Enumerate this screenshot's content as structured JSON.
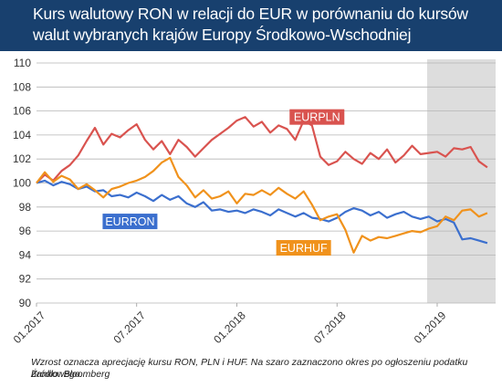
{
  "header": {
    "title": "Kurs walutowy RON w relacji do EUR w porównaniu do kursów walut wybranych krajów Europy Środkowo-Wschodniej"
  },
  "footer": {
    "note": "Wzrost oznacza aprecjację kursu RON, PLN i HUF. Na szaro zaznaczono okres po ogłoszeniu podatku bankowego.",
    "source": "Źródło: Bloomberg"
  },
  "colors": {
    "header_bg": "#18406e",
    "EURPLN": "#d9534f",
    "EURRON": "#3b6fce",
    "EURHUF": "#f0921c",
    "shade": "#d9d9d9"
  },
  "chart_data": {
    "type": "line",
    "ylim": [
      90,
      110
    ],
    "yticks": [
      90,
      92,
      94,
      96,
      98,
      100,
      102,
      104,
      106,
      108,
      110
    ],
    "x_range": [
      0,
      27.5
    ],
    "x_ticks": [
      {
        "x": 0,
        "label": "01.2017"
      },
      {
        "x": 6,
        "label": "07.2017"
      },
      {
        "x": 12,
        "label": "01.2018"
      },
      {
        "x": 18,
        "label": "07.2018"
      },
      {
        "x": 24,
        "label": "01.2019"
      }
    ],
    "shaded_region": {
      "from": 23.4,
      "to": 27.5
    },
    "series": [
      {
        "name": "EURPLN",
        "label_x": 16.8,
        "label_y": 105.5,
        "x": [
          0,
          0.5,
          1,
          1.5,
          2,
          2.5,
          3,
          3.5,
          4,
          4.5,
          5,
          5.5,
          6,
          6.5,
          7,
          7.5,
          8,
          8.5,
          9,
          9.5,
          10,
          10.5,
          11,
          11.5,
          12,
          12.5,
          13,
          13.5,
          14,
          14.5,
          15,
          15.5,
          16,
          16.5,
          17,
          17.5,
          18,
          18.5,
          19,
          19.5,
          20,
          20.5,
          21,
          21.5,
          22,
          22.5,
          23,
          23.5,
          24,
          24.5,
          25,
          25.5,
          26,
          26.5,
          27
        ],
        "values": [
          100.0,
          100.7,
          100.2,
          101.0,
          101.5,
          102.3,
          103.5,
          104.6,
          103.2,
          104.1,
          103.8,
          104.4,
          104.9,
          103.6,
          102.8,
          103.5,
          102.4,
          103.6,
          103.0,
          102.2,
          102.9,
          103.6,
          104.1,
          104.6,
          105.2,
          105.5,
          104.7,
          105.1,
          104.2,
          104.8,
          104.5,
          103.6,
          105.2,
          104.8,
          102.2,
          101.5,
          101.8,
          102.6,
          102.0,
          101.6,
          102.5,
          102.0,
          102.8,
          101.7,
          102.3,
          103.1,
          102.4,
          102.5,
          102.6,
          102.2,
          102.9,
          102.8,
          103.0,
          101.8,
          101.3
        ]
      },
      {
        "name": "EURRON",
        "label_x": 5.6,
        "label_y": 96.8,
        "x": [
          0,
          0.5,
          1,
          1.5,
          2,
          2.5,
          3,
          3.5,
          4,
          4.5,
          5,
          5.5,
          6,
          6.5,
          7,
          7.5,
          8,
          8.5,
          9,
          9.5,
          10,
          10.5,
          11,
          11.5,
          12,
          12.5,
          13,
          13.5,
          14,
          14.5,
          15,
          15.5,
          16,
          16.5,
          17,
          17.5,
          18,
          18.5,
          19,
          19.5,
          20,
          20.5,
          21,
          21.5,
          22,
          22.5,
          23,
          23.5,
          24,
          24.5,
          25,
          25.5,
          26,
          26.5,
          27
        ],
        "values": [
          100.0,
          100.2,
          99.8,
          100.1,
          99.9,
          99.5,
          99.7,
          99.3,
          99.4,
          98.9,
          99.0,
          98.8,
          99.2,
          98.9,
          98.5,
          99.0,
          98.6,
          98.9,
          98.3,
          98.0,
          98.4,
          97.7,
          97.8,
          97.6,
          97.7,
          97.5,
          97.8,
          97.6,
          97.3,
          97.8,
          97.5,
          97.2,
          97.5,
          97.1,
          97.0,
          96.8,
          97.1,
          97.6,
          97.9,
          97.7,
          97.3,
          97.6,
          97.1,
          97.4,
          97.6,
          97.2,
          97.0,
          97.2,
          96.8,
          97.0,
          96.7,
          95.3,
          95.4,
          95.2,
          95.0
        ]
      },
      {
        "name": "EURHUF",
        "label_x": 16.0,
        "label_y": 94.6,
        "x": [
          0,
          0.5,
          1,
          1.5,
          2,
          2.5,
          3,
          3.5,
          4,
          4.5,
          5,
          5.5,
          6,
          6.5,
          7,
          7.5,
          8,
          8.5,
          9,
          9.5,
          10,
          10.5,
          11,
          11.5,
          12,
          12.5,
          13,
          13.5,
          14,
          14.5,
          15,
          15.5,
          16,
          16.5,
          17,
          17.5,
          18,
          18.5,
          19,
          19.5,
          20,
          20.5,
          21,
          21.5,
          22,
          22.5,
          23,
          23.5,
          24,
          24.5,
          25,
          25.5,
          26,
          26.5,
          27
        ],
        "values": [
          100.0,
          100.9,
          100.1,
          100.6,
          100.3,
          99.5,
          99.9,
          99.4,
          98.8,
          99.5,
          99.7,
          100.0,
          100.2,
          100.5,
          101.0,
          101.7,
          102.1,
          100.5,
          99.8,
          98.8,
          99.4,
          98.7,
          98.9,
          99.3,
          98.3,
          99.1,
          99.0,
          99.4,
          99.0,
          99.6,
          99.1,
          98.7,
          99.3,
          98.2,
          96.9,
          97.2,
          97.4,
          96.1,
          94.2,
          95.6,
          95.2,
          95.5,
          95.4,
          95.6,
          95.8,
          96.0,
          95.9,
          96.2,
          96.4,
          97.2,
          96.9,
          97.7,
          97.8,
          97.2,
          97.5
        ]
      }
    ]
  }
}
